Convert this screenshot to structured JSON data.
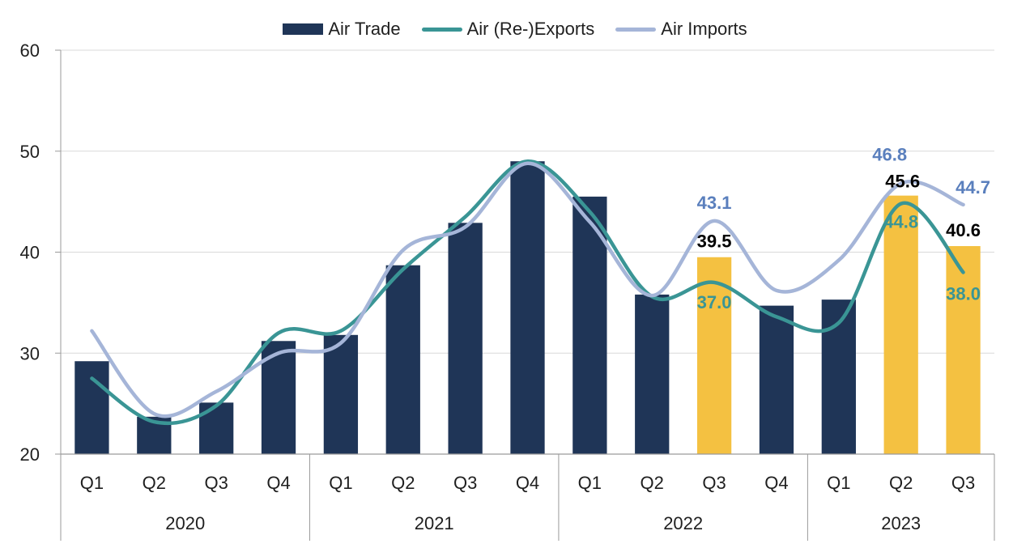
{
  "chart_data": {
    "type": "bar",
    "title": "",
    "xlabel": "",
    "ylabel": "",
    "ylim": [
      20,
      60
    ],
    "yticks": [
      20,
      30,
      40,
      50,
      60
    ],
    "grid": true,
    "legend_position": "top",
    "quarters": [
      "Q1",
      "Q2",
      "Q3",
      "Q4",
      "Q1",
      "Q2",
      "Q3",
      "Q4",
      "Q1",
      "Q2",
      "Q3",
      "Q4",
      "Q1",
      "Q2",
      "Q3"
    ],
    "years": [
      {
        "label": "2020",
        "start": 0,
        "count": 4
      },
      {
        "label": "2021",
        "start": 4,
        "count": 4
      },
      {
        "label": "2022",
        "start": 8,
        "count": 4
      },
      {
        "label": "2023",
        "start": 12,
        "count": 3
      }
    ],
    "series": [
      {
        "name": "Air Trade",
        "kind": "bar",
        "color": "#1f3557",
        "highlight_color": "#f4c141",
        "highlight_indices": [
          10,
          13,
          14
        ],
        "values": [
          29.2,
          23.7,
          25.1,
          31.2,
          31.8,
          38.7,
          42.9,
          49.0,
          45.5,
          35.8,
          39.5,
          34.7,
          35.3,
          45.6,
          40.6
        ]
      },
      {
        "name": "Air (Re-)Exports",
        "kind": "line",
        "color": "#3a9595",
        "values": [
          27.5,
          23.2,
          24.8,
          32.0,
          32.2,
          38.3,
          43.5,
          49.0,
          44.0,
          35.6,
          37.0,
          33.6,
          33.0,
          44.8,
          38.0
        ]
      },
      {
        "name": "Air Imports",
        "kind": "line",
        "color": "#a5b5d8",
        "values": [
          32.2,
          24.0,
          26.2,
          30.0,
          31.0,
          40.2,
          42.5,
          48.8,
          43.0,
          35.7,
          43.1,
          36.2,
          39.2,
          46.8,
          44.7
        ]
      }
    ],
    "data_labels": [
      {
        "series": 2,
        "index": 10,
        "text": "43.1",
        "color": "#5a7fbd"
      },
      {
        "series": 0,
        "index": 10,
        "text": "39.5",
        "color": "#000000"
      },
      {
        "series": 1,
        "index": 10,
        "text": "37.0",
        "color": "#3a9595"
      },
      {
        "series": 2,
        "index": 13,
        "text": "46.8",
        "color": "#5a7fbd"
      },
      {
        "series": 0,
        "index": 13,
        "text": "45.6",
        "color": "#000000"
      },
      {
        "series": 1,
        "index": 13,
        "text": "44.8",
        "color": "#3a9595"
      },
      {
        "series": 2,
        "index": 14,
        "text": "44.7",
        "color": "#5a7fbd"
      },
      {
        "series": 0,
        "index": 14,
        "text": "40.6",
        "color": "#000000"
      },
      {
        "series": 1,
        "index": 14,
        "text": "38.0",
        "color": "#3a9595"
      }
    ]
  }
}
